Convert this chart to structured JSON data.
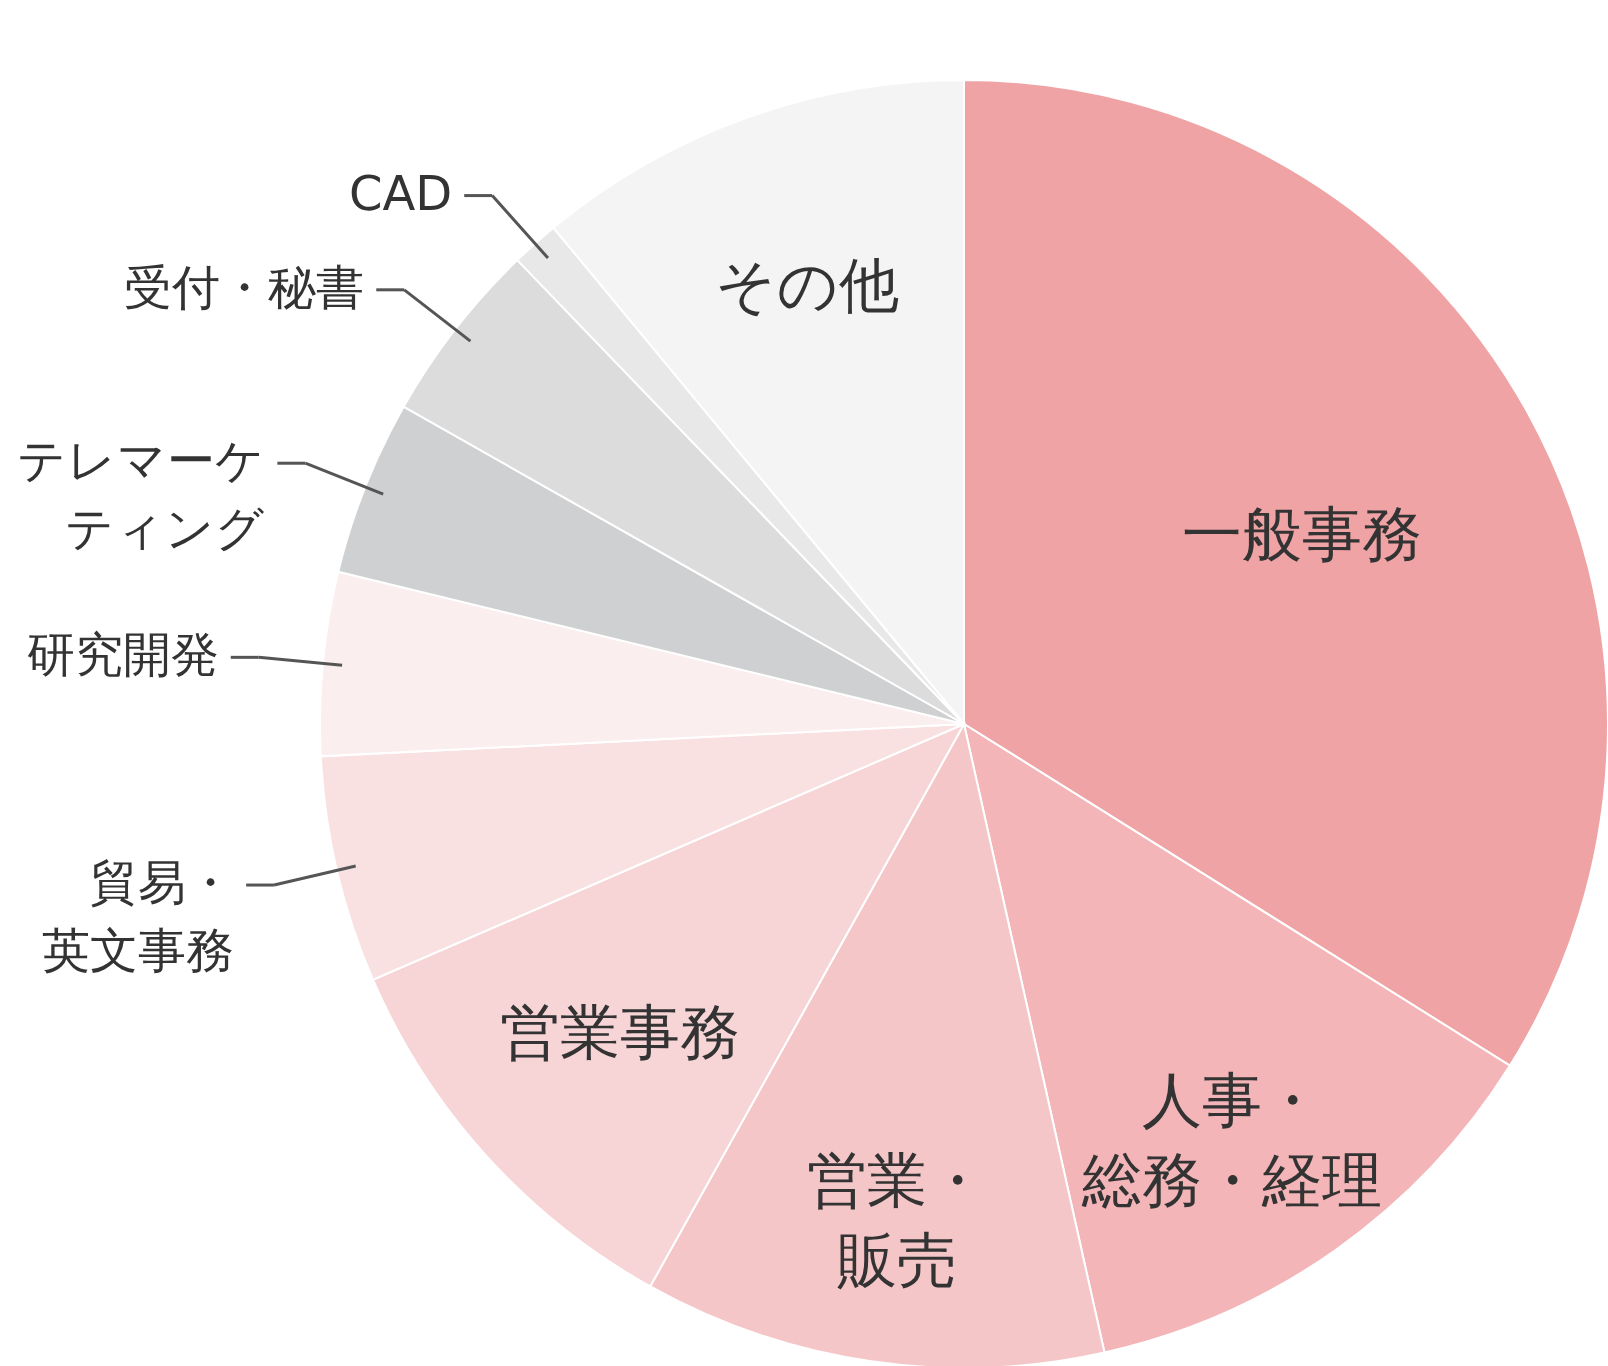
{
  "chart_data": {
    "type": "pie",
    "categories": [
      "一般事務",
      "人事・総務・経理",
      "営業・販売",
      "営業事務",
      "貿易・英文事務",
      "研究開発",
      "テレマーケティング",
      "受付・秘書",
      "CAD",
      "その他"
    ],
    "values": [
      33.9,
      12.6,
      11.6,
      10.4,
      5.7,
      4.6,
      4.4,
      4.6,
      1.2,
      11.0
    ],
    "colors": [
      "#f0a3a5",
      "#f3b5b7",
      "#f5c6c8",
      "#f7d4d6",
      "#f9e1e2",
      "#fbeeef",
      "#cfd0d2",
      "#dcdcdd",
      "#e8e8e9",
      "#f4f4f4"
    ]
  }
}
